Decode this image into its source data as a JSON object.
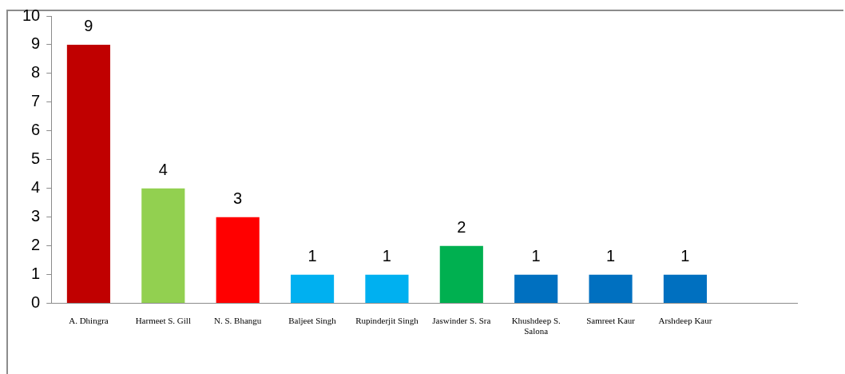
{
  "chart_data": {
    "type": "bar",
    "categories": [
      "A. Dhingra",
      "Harmeet S. Gill",
      "N. S. Bhangu",
      "Baljeet Singh",
      "Rupinderjit Singh",
      "Jaswinder S. Sra",
      "Khushdeep S. Salona",
      "Samreet Kaur",
      "Arshdeep Kaur",
      null
    ],
    "values": [
      9,
      4,
      3,
      1,
      1,
      2,
      1,
      1,
      1,
      null
    ],
    "colors": [
      "#c00000",
      "#92d050",
      "#ff0000",
      "#00b0f0",
      "#00b0f0",
      "#00b050",
      "#0070c0",
      "#0070c0",
      "#0070c0",
      "#0070c0"
    ],
    "ylim": [
      0,
      10
    ],
    "yticks": [
      0,
      1,
      2,
      3,
      4,
      5,
      6,
      7,
      8,
      9,
      10
    ],
    "grid": false,
    "legend": false,
    "data_labels": true
  }
}
